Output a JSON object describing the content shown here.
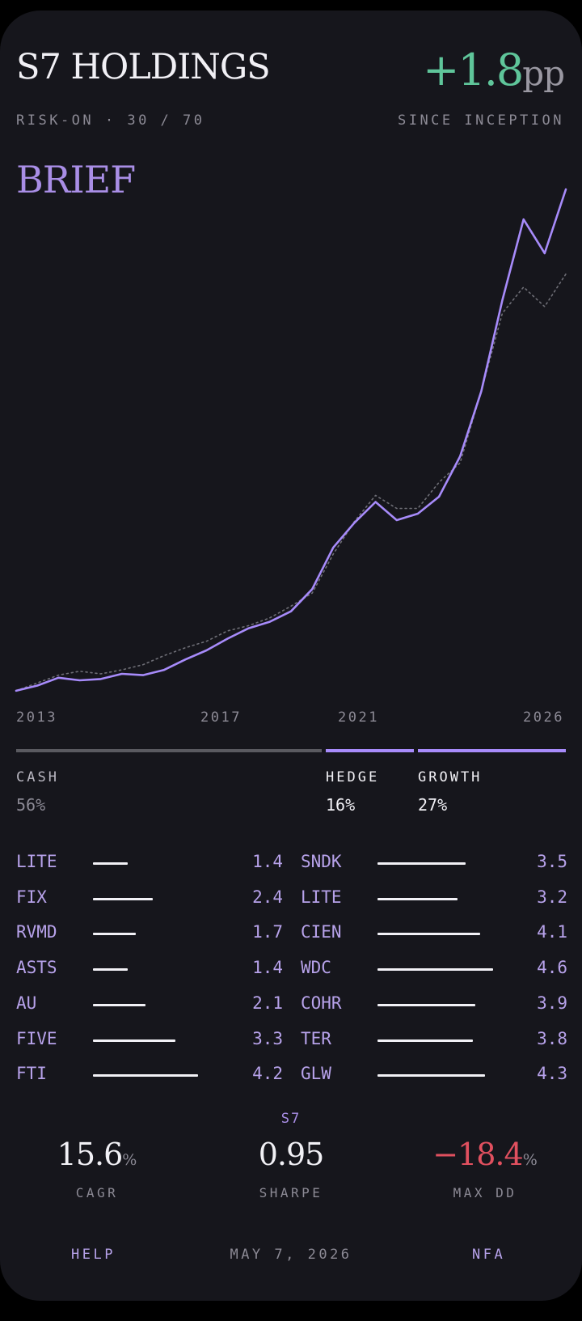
{
  "header": {
    "title": "S7 HOLDINGS",
    "delta_value": "+1.8",
    "delta_unit": "pp",
    "strategy": "RISK-ON · 30 / 70",
    "since": "SINCE INCEPTION"
  },
  "brief_label": "BRIEF",
  "chart_data": {
    "type": "line",
    "x": [
      2013.0,
      2013.5,
      2014.0,
      2014.5,
      2015.0,
      2015.5,
      2016.0,
      2016.5,
      2017.0,
      2017.5,
      2018.0,
      2018.5,
      2019.0,
      2019.5,
      2020.0,
      2020.5,
      2021.0,
      2021.5,
      2022.0,
      2022.5,
      2023.0,
      2023.5,
      2024.0,
      2024.5,
      2025.0,
      2025.5,
      2026.0
    ],
    "series": [
      {
        "values": [
          100,
          104,
          110,
          108,
          109,
          113,
          112,
          116,
          124,
          131,
          140,
          148,
          153,
          161,
          178,
          210,
          229,
          245,
          231,
          236,
          249,
          280,
          330,
          400,
          462,
          436,
          485
        ],
        "color": "#a78bfa"
      },
      {
        "values": [
          100,
          106,
          112,
          115,
          113,
          116,
          120,
          127,
          133,
          138,
          146,
          150,
          156,
          165,
          175,
          205,
          230,
          250,
          240,
          240,
          260,
          275,
          330,
          390,
          410,
          395,
          420
        ],
        "color": "#6e6e76"
      }
    ],
    "xticks": [
      "2013",
      "2017",
      "2021",
      "2026"
    ],
    "ylim": [
      90,
      500
    ]
  },
  "allocation": [
    {
      "label": "CASH",
      "value": "56%",
      "pct": 56,
      "color": "#5a5a60"
    },
    {
      "label": "HEDGE",
      "value": "16%",
      "pct": 16,
      "color": "#a78bfa"
    },
    {
      "label": "GROWTH",
      "value": "27%",
      "pct": 27,
      "color": "#a78bfa"
    }
  ],
  "holdings_left": [
    {
      "ticker": "LITE",
      "weight": 1.4,
      "value": "1.4"
    },
    {
      "ticker": "FIX",
      "weight": 2.4,
      "value": "2.4"
    },
    {
      "ticker": "RVMD",
      "weight": 1.7,
      "value": "1.7"
    },
    {
      "ticker": "ASTS",
      "weight": 1.4,
      "value": "1.4"
    },
    {
      "ticker": "AU",
      "weight": 2.1,
      "value": "2.1"
    },
    {
      "ticker": "FIVE",
      "weight": 3.3,
      "value": "3.3"
    },
    {
      "ticker": "FTI",
      "weight": 4.2,
      "value": "4.2"
    }
  ],
  "holdings_right": [
    {
      "ticker": "SNDK",
      "weight": 3.5,
      "value": "3.5"
    },
    {
      "ticker": "LITE",
      "weight": 3.2,
      "value": "3.2"
    },
    {
      "ticker": "CIEN",
      "weight": 4.1,
      "value": "4.1"
    },
    {
      "ticker": "WDC",
      "weight": 4.6,
      "value": "4.6"
    },
    {
      "ticker": "COHR",
      "weight": 3.9,
      "value": "3.9"
    },
    {
      "ticker": "TER",
      "weight": 3.8,
      "value": "3.8"
    },
    {
      "ticker": "GLW",
      "weight": 4.3,
      "value": "4.3"
    }
  ],
  "stats": {
    "heading": "S7",
    "cagr": {
      "value": "15.6",
      "unit": "%",
      "label": "CAGR"
    },
    "sharpe": {
      "value": "0.95",
      "label": "SHARPE"
    },
    "max_dd": {
      "value": "−18.4",
      "unit": "%",
      "label": "MAX DD"
    }
  },
  "footer": {
    "help": "HELP",
    "date": "MAY 7, 2026",
    "nfa": "NFA"
  },
  "colors": {
    "accent": "#a78bfa",
    "positive": "#5fc59a",
    "negative": "#e1505f",
    "background": "#16161c"
  }
}
